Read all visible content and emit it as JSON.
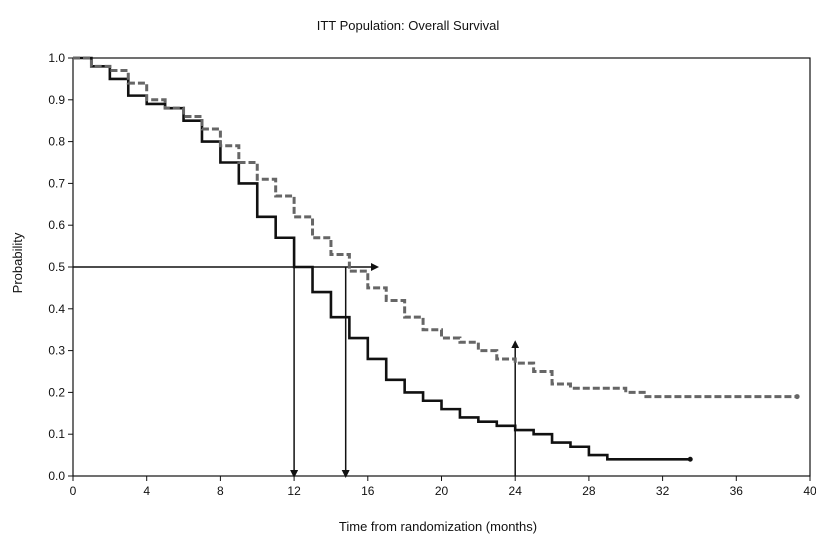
{
  "chart_data": {
    "type": "line",
    "title": "ITT Population: Overall Survival",
    "xlabel": "Time from randomization (months)",
    "ylabel": "Probability",
    "xlim": [
      0,
      40
    ],
    "ylim": [
      0,
      1
    ],
    "x_ticks": [
      0,
      4,
      8,
      12,
      16,
      20,
      24,
      28,
      32,
      36,
      40
    ],
    "y_ticks": [
      0.0,
      0.1,
      0.2,
      0.3,
      0.4,
      0.5,
      0.6,
      0.7,
      0.8,
      0.9,
      1.0
    ],
    "grid": false,
    "series": [
      {
        "style": "solid",
        "color": "#111111",
        "points": [
          [
            0,
            1.0
          ],
          [
            1,
            0.98
          ],
          [
            2,
            0.95
          ],
          [
            3,
            0.91
          ],
          [
            4,
            0.89
          ],
          [
            5,
            0.88
          ],
          [
            6,
            0.85
          ],
          [
            7,
            0.8
          ],
          [
            8,
            0.75
          ],
          [
            9,
            0.7
          ],
          [
            10,
            0.62
          ],
          [
            11,
            0.57
          ],
          [
            12,
            0.5
          ],
          [
            13,
            0.44
          ],
          [
            14,
            0.38
          ],
          [
            15,
            0.33
          ],
          [
            16,
            0.28
          ],
          [
            17,
            0.23
          ],
          [
            18,
            0.2
          ],
          [
            19,
            0.18
          ],
          [
            20,
            0.16
          ],
          [
            21,
            0.14
          ],
          [
            22,
            0.13
          ],
          [
            23,
            0.12
          ],
          [
            24,
            0.11
          ],
          [
            25,
            0.1
          ],
          [
            26,
            0.08
          ],
          [
            27,
            0.07
          ],
          [
            28,
            0.05
          ],
          [
            29,
            0.04
          ],
          [
            31.5,
            0.04
          ],
          [
            33.5,
            0.04
          ]
        ]
      },
      {
        "style": "dashed",
        "color": "#666666",
        "points": [
          [
            0,
            1.0
          ],
          [
            1,
            0.98
          ],
          [
            2,
            0.97
          ],
          [
            3,
            0.94
          ],
          [
            4,
            0.9
          ],
          [
            5,
            0.88
          ],
          [
            6,
            0.86
          ],
          [
            7,
            0.83
          ],
          [
            8,
            0.79
          ],
          [
            9,
            0.75
          ],
          [
            10,
            0.71
          ],
          [
            11,
            0.67
          ],
          [
            12,
            0.62
          ],
          [
            13,
            0.57
          ],
          [
            14,
            0.53
          ],
          [
            15,
            0.49
          ],
          [
            16,
            0.45
          ],
          [
            17,
            0.42
          ],
          [
            18,
            0.38
          ],
          [
            19,
            0.35
          ],
          [
            20,
            0.33
          ],
          [
            21,
            0.32
          ],
          [
            22,
            0.3
          ],
          [
            23,
            0.28
          ],
          [
            24,
            0.27
          ],
          [
            25,
            0.25
          ],
          [
            26,
            0.22
          ],
          [
            27,
            0.21
          ],
          [
            28,
            0.21
          ],
          [
            29,
            0.21
          ],
          [
            30,
            0.2
          ],
          [
            31,
            0.19
          ],
          [
            33,
            0.19
          ],
          [
            36,
            0.19
          ],
          [
            39.3,
            0.19
          ]
        ]
      }
    ],
    "reference_lines": [
      {
        "from": [
          0,
          0.5
        ],
        "to": [
          16.5,
          0.5
        ]
      },
      {
        "from": [
          12,
          0.5
        ],
        "to": [
          12,
          0
        ]
      },
      {
        "from": [
          14.8,
          0.5
        ],
        "to": [
          14.8,
          0
        ]
      },
      {
        "from": [
          24,
          0
        ],
        "to": [
          24,
          0.32
        ]
      }
    ]
  }
}
